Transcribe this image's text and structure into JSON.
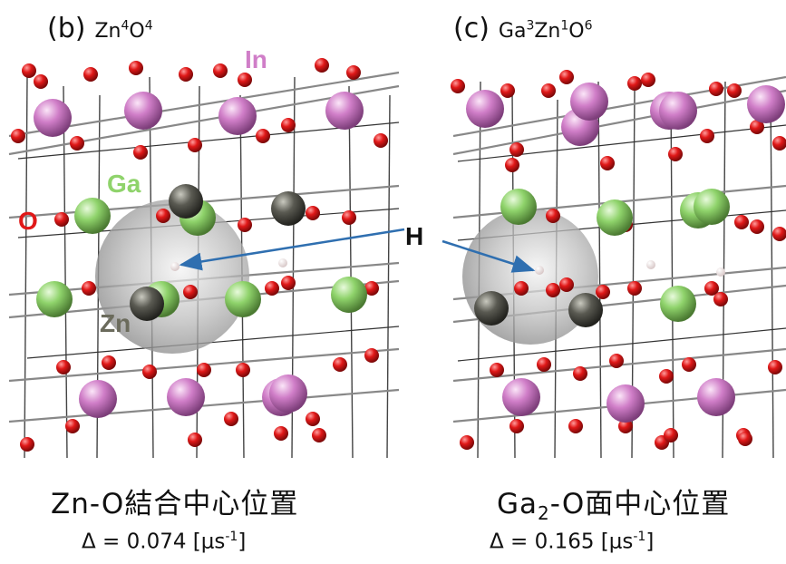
{
  "panels": [
    {
      "letter": "(b)",
      "formula": {
        "el1": "Zn",
        "n1": "4",
        "el2": "O",
        "n2": "4"
      },
      "caption": "Zn-O結合中心位置",
      "delta": {
        "prefix": "Δ = 0.074 [μs",
        "exp": "-1",
        "suffix": "]"
      }
    },
    {
      "letter": "(c)",
      "formula": {
        "el1": "Ga",
        "n1": "3",
        "el2": "Zn",
        "n2": "1",
        "el3": "O",
        "n3": "6"
      },
      "caption": {
        "pre": "Ga",
        "sub": "2",
        "post": "-O面中心位置"
      },
      "delta": {
        "prefix": "Δ = 0.165 [μs",
        "exp": "-1",
        "suffix": "]"
      }
    }
  ],
  "atom_labels": {
    "in": "In",
    "ga": "Ga",
    "o": "O",
    "zn": "Zn",
    "h": "H"
  },
  "colors": {
    "in": "#d07ec8",
    "ga": "#8fd36b",
    "o": "#e01818",
    "zn": "#5a5a52",
    "zn_label": "#6b6b5c",
    "arrow": "#2f6fb0",
    "bond": "#555555"
  }
}
